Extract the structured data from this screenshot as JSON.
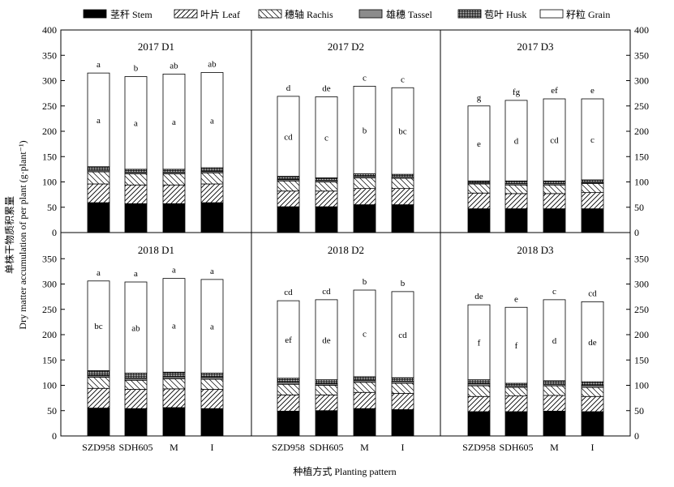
{
  "chart_data": {
    "type": "bar",
    "stacked": true,
    "ylabel_cn": "单株干物质积累量",
    "ylabel_en": "Dry matter accumulation of per plant (g·plant⁻¹)",
    "xlabel": "种植方式 Planting pattern",
    "ylim": [
      0,
      400
    ],
    "yticks": [
      0,
      50,
      100,
      150,
      200,
      250,
      300,
      350,
      400
    ],
    "categories": [
      "SZD958",
      "SDH605",
      "M",
      "I"
    ],
    "legend": [
      {
        "key": "stem",
        "label": "茎秆 Stem"
      },
      {
        "key": "leaf",
        "label": "叶片 Leaf"
      },
      {
        "key": "rachis",
        "label": "穗轴 Rachis"
      },
      {
        "key": "tassel",
        "label": "雄穗 Tassel"
      },
      {
        "key": "husk",
        "label": "苞叶 Husk"
      },
      {
        "key": "grain",
        "label": "籽粒 Grain"
      }
    ],
    "panels": [
      {
        "title": "2017 D1",
        "series": {
          "stem": [
            59,
            57,
            57,
            59
          ],
          "leaf": [
            37,
            37,
            37,
            37
          ],
          "rachis": [
            24,
            22,
            22,
            22
          ],
          "tassel": [
            3,
            3,
            3,
            3
          ],
          "husk": [
            7,
            6,
            6,
            7
          ],
          "grain": [
            185,
            183,
            188,
            188
          ]
        },
        "grain_labels": [
          "a",
          "a",
          "a",
          "a"
        ],
        "total_labels": [
          "a",
          "b",
          "ab",
          "ab"
        ]
      },
      {
        "title": "2017 D2",
        "series": {
          "stem": [
            51,
            51,
            55,
            55
          ],
          "leaf": [
            31,
            31,
            32,
            32
          ],
          "rachis": [
            20,
            18,
            21,
            20
          ],
          "tassel": [
            3,
            3,
            3,
            3
          ],
          "husk": [
            6,
            5,
            5,
            5
          ],
          "grain": [
            158,
            160,
            173,
            171
          ]
        },
        "grain_labels": [
          "cd",
          "c",
          "b",
          "bc"
        ],
        "total_labels": [
          "d",
          "de",
          "c",
          "c"
        ]
      },
      {
        "title": "2017 D3",
        "series": {
          "stem": [
            47,
            47,
            47,
            47
          ],
          "leaf": [
            31,
            30,
            30,
            32
          ],
          "rachis": [
            18,
            17,
            17,
            18
          ],
          "tassel": [
            2,
            3,
            3,
            2
          ],
          "husk": [
            4,
            5,
            5,
            5
          ],
          "grain": [
            148,
            159,
            162,
            160
          ]
        },
        "grain_labels": [
          "e",
          "d",
          "cd",
          "c"
        ],
        "total_labels": [
          "g",
          "fg",
          "ef",
          "e"
        ]
      },
      {
        "title": "2018 D1",
        "series": {
          "stem": [
            55,
            54,
            56,
            54
          ],
          "leaf": [
            39,
            38,
            37,
            38
          ],
          "rachis": [
            22,
            18,
            20,
            20
          ],
          "tassel": [
            3,
            4,
            4,
            4
          ],
          "husk": [
            10,
            10,
            9,
            8
          ],
          "grain": [
            177,
            180,
            185,
            185
          ]
        },
        "grain_labels": [
          "bc",
          "ab",
          "a",
          "a"
        ],
        "total_labels": [
          "a",
          "a",
          "a",
          "a"
        ]
      },
      {
        "title": "2018 D2",
        "series": {
          "stem": [
            49,
            50,
            54,
            52
          ],
          "leaf": [
            32,
            31,
            32,
            32
          ],
          "rachis": [
            21,
            19,
            20,
            20
          ],
          "tassel": [
            4,
            3,
            4,
            4
          ],
          "husk": [
            8,
            8,
            7,
            7
          ],
          "grain": [
            153,
            158,
            171,
            170
          ]
        },
        "grain_labels": [
          "ef",
          "de",
          "c",
          "cd"
        ],
        "total_labels": [
          "cd",
          "cd",
          "b",
          "b"
        ]
      },
      {
        "title": "2018 D3",
        "series": {
          "stem": [
            48,
            48,
            49,
            48
          ],
          "leaf": [
            30,
            31,
            31,
            30
          ],
          "rachis": [
            21,
            17,
            19,
            18
          ],
          "tassel": [
            4,
            3,
            3,
            4
          ],
          "husk": [
            8,
            5,
            7,
            7
          ],
          "grain": [
            148,
            150,
            160,
            158
          ]
        },
        "grain_labels": [
          "f",
          "f",
          "d",
          "de"
        ],
        "total_labels": [
          "de",
          "e",
          "c",
          "cd"
        ]
      }
    ]
  }
}
